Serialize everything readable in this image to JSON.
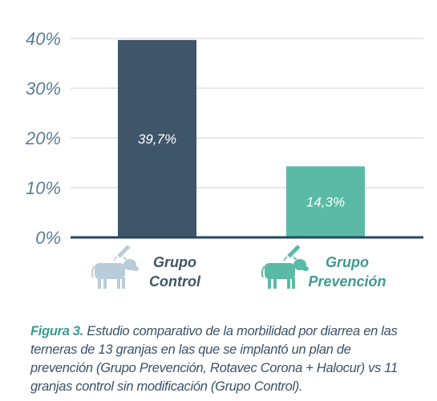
{
  "chart_data": {
    "type": "bar",
    "categories": [
      "Grupo Control",
      "Grupo Prevención"
    ],
    "category_lines": [
      [
        "Grupo",
        "Control"
      ],
      [
        "Grupo",
        "Prevención"
      ]
    ],
    "values": [
      39.7,
      14.3
    ],
    "data_labels": [
      "39,7%",
      "14,3%"
    ],
    "yticks": [
      0,
      10,
      20,
      30,
      40
    ],
    "ytick_labels": [
      "0%",
      "10%",
      "20%",
      "30%",
      "40%"
    ],
    "ylim": [
      0,
      40
    ],
    "grid": true,
    "title": "",
    "xlabel": "",
    "ylabel": "",
    "colors": {
      "bars": [
        "#3f5569",
        "#5bbaa6"
      ],
      "axis": "#1f4a63",
      "grid": "#d5d9dc",
      "tick_text": "#5a7d92",
      "category_text": [
        "#3f5569",
        "#3d9b8e"
      ],
      "icons": [
        "#b9ccd9",
        "#5bbaa6"
      ]
    },
    "icons": [
      "calf-with-syringe-icon",
      "calf-with-syringe-icon"
    ]
  },
  "caption": {
    "label": "Figura 3.",
    "text": "Estudio comparativo de la morbilidad por diarrea en las terneras de 13 granjas en las que se implantó un plan de prevención (Grupo Prevención, Rotavec Corona + Halocur) vs 11 granjas control sin modificación (Grupo Control)."
  }
}
